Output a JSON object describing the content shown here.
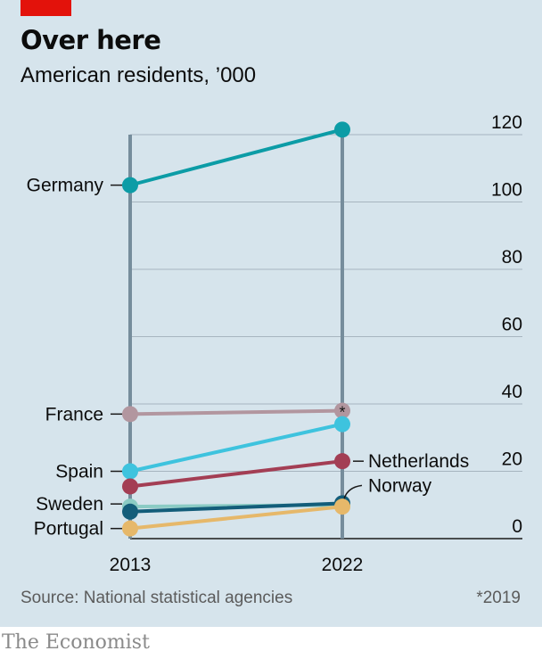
{
  "header": {
    "title": "Over here",
    "subtitle": "American residents, ’000"
  },
  "footer": {
    "source": "Source: National statistical agencies",
    "footnote": "*2019",
    "brand": "The Economist"
  },
  "colors": {
    "background": "#d6e4ec",
    "accent_red": "#e3120b",
    "axis_line": "#768d9c",
    "grid": "#a7b5bf"
  },
  "chart_data": {
    "type": "line",
    "title": "Over here",
    "subtitle": "American residents, ’000",
    "x": [
      "2013",
      "2022"
    ],
    "ylim": [
      0,
      120
    ],
    "yticks": [
      0,
      20,
      40,
      60,
      80,
      100,
      120
    ],
    "grid": true,
    "series": [
      {
        "name": "Germany",
        "values": [
          105,
          121.5
        ],
        "color": "#0c9ca6",
        "label_side": "left"
      },
      {
        "name": "France",
        "values": [
          37,
          38
        ],
        "color": "#b2969f",
        "label_side": "left",
        "end_marker": "*"
      },
      {
        "name": "Spain",
        "values": [
          20,
          34
        ],
        "color": "#3ec3de",
        "label_side": "left"
      },
      {
        "name": "Netherlands",
        "values": [
          15.5,
          23
        ],
        "color": "#a33e54",
        "label_side": "right"
      },
      {
        "name": "Sweden",
        "values": [
          9.5,
          10
        ],
        "color": "#8bcbc4",
        "label_side": "left"
      },
      {
        "name": "Norway",
        "values": [
          8,
          10.5
        ],
        "color": "#135d7a",
        "label_side": "right"
      },
      {
        "name": "Portugal",
        "values": [
          3,
          9.5
        ],
        "color": "#e6b86a",
        "label_side": "left"
      }
    ]
  }
}
